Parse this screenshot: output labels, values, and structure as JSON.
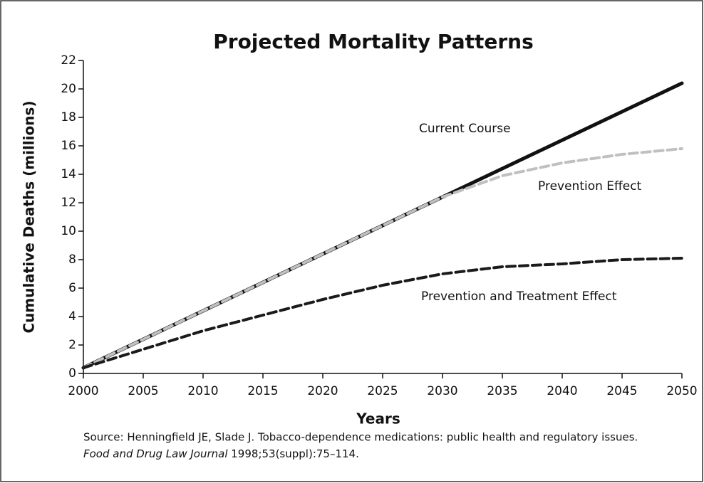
{
  "chart_data": {
    "type": "line",
    "title": "Projected Mortality Patterns",
    "x_label": "Years",
    "y_label": "Cumulative Deaths (millions)",
    "x": [
      2000,
      2005,
      2010,
      2015,
      2020,
      2025,
      2030,
      2035,
      2040,
      2045,
      2050
    ],
    "series": [
      {
        "name": "Current Course",
        "color": "#111111",
        "dash": false,
        "values": [
          0.4,
          2.4,
          4.4,
          6.4,
          8.4,
          10.4,
          12.4,
          14.4,
          16.4,
          18.4,
          20.4
        ]
      },
      {
        "name": "Prevention Effect",
        "color": "#c0c0c0",
        "dash": true,
        "values": [
          0.4,
          2.4,
          4.4,
          6.4,
          8.4,
          10.4,
          12.4,
          13.9,
          14.8,
          15.4,
          15.8
        ]
      },
      {
        "name": "Prevention and Treatment Effect",
        "color": "#1a1a1a",
        "dash": true,
        "values": [
          0.4,
          1.7,
          3.0,
          4.1,
          5.2,
          6.2,
          7.0,
          7.5,
          7.7,
          8.0,
          8.1
        ]
      }
    ],
    "xlim": [
      2000,
      2050
    ],
    "xticks": [
      2000,
      2005,
      2010,
      2015,
      2020,
      2025,
      2030,
      2035,
      2040,
      2045,
      2050
    ],
    "ylim": [
      0,
      22
    ],
    "yticks": [
      0,
      2,
      4,
      6,
      8,
      10,
      12,
      14,
      16,
      18,
      20,
      22
    ],
    "grid": false,
    "source": {
      "line1": "Source: Henningfield JE, Slade J. Tobacco-dependence medications: public health and regulatory issues.",
      "journal": "Food and Drug Law Journal",
      "citation": " 1998;53(suppl):75–114."
    }
  }
}
